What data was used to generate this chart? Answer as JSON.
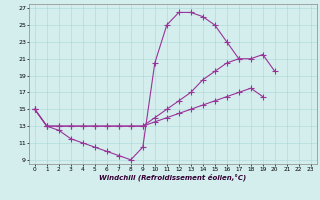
{
  "background_color": "#d4eeee",
  "line_color": "#993399",
  "marker": "+",
  "markersize": 4,
  "linewidth": 0.8,
  "xlabel": "Windchill (Refroidissement éolien,°C)",
  "ylabel_ticks": [
    9,
    11,
    13,
    15,
    17,
    19,
    21,
    23,
    25,
    27
  ],
  "xlabel_ticks": [
    0,
    1,
    2,
    3,
    4,
    5,
    6,
    7,
    8,
    9,
    10,
    11,
    12,
    13,
    14,
    15,
    16,
    17,
    18,
    19,
    20,
    21,
    22,
    23
  ],
  "xlim": [
    -0.5,
    23.5
  ],
  "ylim": [
    8.5,
    27.5
  ],
  "grid_color": "#aad8d8",
  "series": [
    {
      "x": [
        0,
        1,
        2,
        3,
        4,
        5,
        6,
        7,
        8,
        9,
        10,
        11,
        12,
        13,
        14,
        15,
        16,
        17,
        18,
        19,
        20,
        21,
        22,
        23
      ],
      "y": [
        15,
        13,
        12.5,
        11.5,
        11,
        10.5,
        10,
        9.5,
        9,
        10.5,
        20.5,
        25,
        26.5,
        26.5,
        26,
        25,
        23,
        21,
        null,
        null,
        null,
        null,
        null,
        null
      ]
    },
    {
      "x": [
        0,
        1,
        2,
        3,
        4,
        5,
        6,
        7,
        8,
        9,
        10,
        11,
        12,
        13,
        14,
        15,
        16,
        17,
        18,
        19,
        20,
        21,
        22,
        23
      ],
      "y": [
        15,
        13,
        13,
        13,
        13,
        13,
        13,
        13,
        13,
        13,
        14,
        15,
        16,
        17,
        18.5,
        19.5,
        20.5,
        21,
        21,
        21.5,
        19.5,
        null,
        null,
        null
      ]
    },
    {
      "x": [
        0,
        1,
        2,
        3,
        4,
        5,
        6,
        7,
        8,
        9,
        10,
        11,
        12,
        13,
        14,
        15,
        16,
        17,
        18,
        19,
        20,
        21,
        22,
        23
      ],
      "y": [
        15,
        13,
        13,
        13,
        13,
        13,
        13,
        13,
        13,
        13,
        13.5,
        14,
        14.5,
        15,
        15.5,
        16,
        16.5,
        17,
        17.5,
        16.5,
        null,
        null,
        null,
        null
      ]
    }
  ]
}
